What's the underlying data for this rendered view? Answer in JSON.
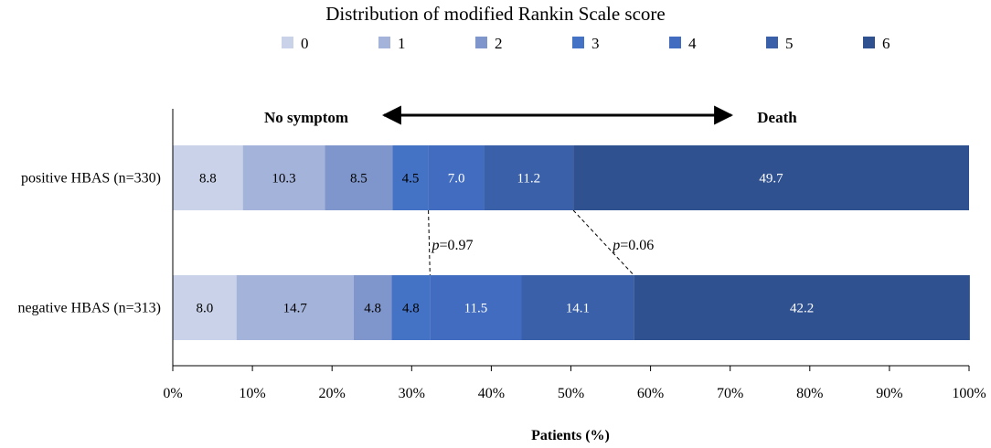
{
  "chart_data": {
    "type": "bar",
    "orientation": "horizontal",
    "stacked": true,
    "title": "Distribution of modified Rankin Scale score",
    "categories": [
      "positive HBAS (n=330)",
      "negative HBAS (n=313)"
    ],
    "series": [
      {
        "name": "0",
        "color": "#c9d2e8",
        "values": [
          8.8,
          8.0
        ],
        "label_color": "#000000"
      },
      {
        "name": "1",
        "color": "#a4b3da",
        "values": [
          10.3,
          14.7
        ],
        "label_color": "#000000"
      },
      {
        "name": "2",
        "color": "#7f96cc",
        "values": [
          8.5,
          4.8
        ],
        "label_color": "#000000"
      },
      {
        "name": "3",
        "color": "#4472c4",
        "values": [
          4.5,
          4.8
        ],
        "label_color": "#000000"
      },
      {
        "name": "4",
        "color": "#416cc0",
        "values": [
          7.0,
          11.5
        ],
        "label_color": "#ffffff"
      },
      {
        "name": "5",
        "color": "#3a60aa",
        "values": [
          11.2,
          14.1
        ],
        "label_color": "#ffffff"
      },
      {
        "name": "6",
        "color": "#2f5190",
        "values": [
          49.7,
          42.2
        ],
        "label_color": "#ffffff"
      }
    ],
    "xlabel": "Patients (%)",
    "xlim": [
      0,
      100
    ],
    "xticks": [
      "0%",
      "10%",
      "20%",
      "30%",
      "40%",
      "50%",
      "60%",
      "70%",
      "80%",
      "90%",
      "100%"
    ],
    "legend_position": "top",
    "annotations": {
      "left_label": "No symptom",
      "right_label": "Death",
      "comparisons": [
        {
          "p_italic": "p",
          "p_value": "=0.97",
          "between_cumulative": [
            32.1,
            32.3
          ]
        },
        {
          "p_italic": "p",
          "p_value": "=0.06",
          "between_cumulative": [
            50.3,
            57.9
          ]
        }
      ]
    }
  }
}
